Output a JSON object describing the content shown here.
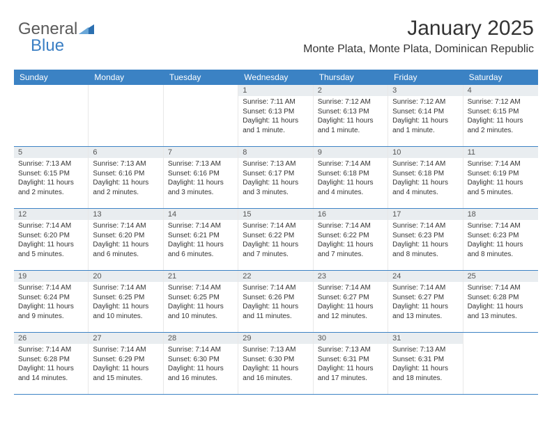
{
  "logo": {
    "text_general": "General",
    "text_blue": "Blue"
  },
  "header": {
    "month_title": "January 2025",
    "location": "Monte Plata, Monte Plata, Dominican Republic"
  },
  "colors": {
    "header_bar": "#3b82c4",
    "date_strip": "#e9edf0",
    "week_divider": "#3b82c4",
    "logo_gray": "#5a5a5a",
    "logo_blue": "#3b7fc4"
  },
  "day_names": [
    "Sunday",
    "Monday",
    "Tuesday",
    "Wednesday",
    "Thursday",
    "Friday",
    "Saturday"
  ],
  "label_prefixes": {
    "sunrise": "Sunrise: ",
    "sunset": "Sunset: ",
    "daylight": "Daylight: "
  },
  "weeks": [
    [
      {
        "date": "",
        "sunrise": "",
        "sunset": "",
        "daylight": ""
      },
      {
        "date": "",
        "sunrise": "",
        "sunset": "",
        "daylight": ""
      },
      {
        "date": "",
        "sunrise": "",
        "sunset": "",
        "daylight": ""
      },
      {
        "date": "1",
        "sunrise": "7:11 AM",
        "sunset": "6:13 PM",
        "daylight": "11 hours and 1 minute."
      },
      {
        "date": "2",
        "sunrise": "7:12 AM",
        "sunset": "6:13 PM",
        "daylight": "11 hours and 1 minute."
      },
      {
        "date": "3",
        "sunrise": "7:12 AM",
        "sunset": "6:14 PM",
        "daylight": "11 hours and 1 minute."
      },
      {
        "date": "4",
        "sunrise": "7:12 AM",
        "sunset": "6:15 PM",
        "daylight": "11 hours and 2 minutes."
      }
    ],
    [
      {
        "date": "5",
        "sunrise": "7:13 AM",
        "sunset": "6:15 PM",
        "daylight": "11 hours and 2 minutes."
      },
      {
        "date": "6",
        "sunrise": "7:13 AM",
        "sunset": "6:16 PM",
        "daylight": "11 hours and 2 minutes."
      },
      {
        "date": "7",
        "sunrise": "7:13 AM",
        "sunset": "6:16 PM",
        "daylight": "11 hours and 3 minutes."
      },
      {
        "date": "8",
        "sunrise": "7:13 AM",
        "sunset": "6:17 PM",
        "daylight": "11 hours and 3 minutes."
      },
      {
        "date": "9",
        "sunrise": "7:14 AM",
        "sunset": "6:18 PM",
        "daylight": "11 hours and 4 minutes."
      },
      {
        "date": "10",
        "sunrise": "7:14 AM",
        "sunset": "6:18 PM",
        "daylight": "11 hours and 4 minutes."
      },
      {
        "date": "11",
        "sunrise": "7:14 AM",
        "sunset": "6:19 PM",
        "daylight": "11 hours and 5 minutes."
      }
    ],
    [
      {
        "date": "12",
        "sunrise": "7:14 AM",
        "sunset": "6:20 PM",
        "daylight": "11 hours and 5 minutes."
      },
      {
        "date": "13",
        "sunrise": "7:14 AM",
        "sunset": "6:20 PM",
        "daylight": "11 hours and 6 minutes."
      },
      {
        "date": "14",
        "sunrise": "7:14 AM",
        "sunset": "6:21 PM",
        "daylight": "11 hours and 6 minutes."
      },
      {
        "date": "15",
        "sunrise": "7:14 AM",
        "sunset": "6:22 PM",
        "daylight": "11 hours and 7 minutes."
      },
      {
        "date": "16",
        "sunrise": "7:14 AM",
        "sunset": "6:22 PM",
        "daylight": "11 hours and 7 minutes."
      },
      {
        "date": "17",
        "sunrise": "7:14 AM",
        "sunset": "6:23 PM",
        "daylight": "11 hours and 8 minutes."
      },
      {
        "date": "18",
        "sunrise": "7:14 AM",
        "sunset": "6:23 PM",
        "daylight": "11 hours and 8 minutes."
      }
    ],
    [
      {
        "date": "19",
        "sunrise": "7:14 AM",
        "sunset": "6:24 PM",
        "daylight": "11 hours and 9 minutes."
      },
      {
        "date": "20",
        "sunrise": "7:14 AM",
        "sunset": "6:25 PM",
        "daylight": "11 hours and 10 minutes."
      },
      {
        "date": "21",
        "sunrise": "7:14 AM",
        "sunset": "6:25 PM",
        "daylight": "11 hours and 10 minutes."
      },
      {
        "date": "22",
        "sunrise": "7:14 AM",
        "sunset": "6:26 PM",
        "daylight": "11 hours and 11 minutes."
      },
      {
        "date": "23",
        "sunrise": "7:14 AM",
        "sunset": "6:27 PM",
        "daylight": "11 hours and 12 minutes."
      },
      {
        "date": "24",
        "sunrise": "7:14 AM",
        "sunset": "6:27 PM",
        "daylight": "11 hours and 13 minutes."
      },
      {
        "date": "25",
        "sunrise": "7:14 AM",
        "sunset": "6:28 PM",
        "daylight": "11 hours and 13 minutes."
      }
    ],
    [
      {
        "date": "26",
        "sunrise": "7:14 AM",
        "sunset": "6:28 PM",
        "daylight": "11 hours and 14 minutes."
      },
      {
        "date": "27",
        "sunrise": "7:14 AM",
        "sunset": "6:29 PM",
        "daylight": "11 hours and 15 minutes."
      },
      {
        "date": "28",
        "sunrise": "7:14 AM",
        "sunset": "6:30 PM",
        "daylight": "11 hours and 16 minutes."
      },
      {
        "date": "29",
        "sunrise": "7:13 AM",
        "sunset": "6:30 PM",
        "daylight": "11 hours and 16 minutes."
      },
      {
        "date": "30",
        "sunrise": "7:13 AM",
        "sunset": "6:31 PM",
        "daylight": "11 hours and 17 minutes."
      },
      {
        "date": "31",
        "sunrise": "7:13 AM",
        "sunset": "6:31 PM",
        "daylight": "11 hours and 18 minutes."
      },
      {
        "date": "",
        "sunrise": "",
        "sunset": "",
        "daylight": ""
      }
    ]
  ]
}
